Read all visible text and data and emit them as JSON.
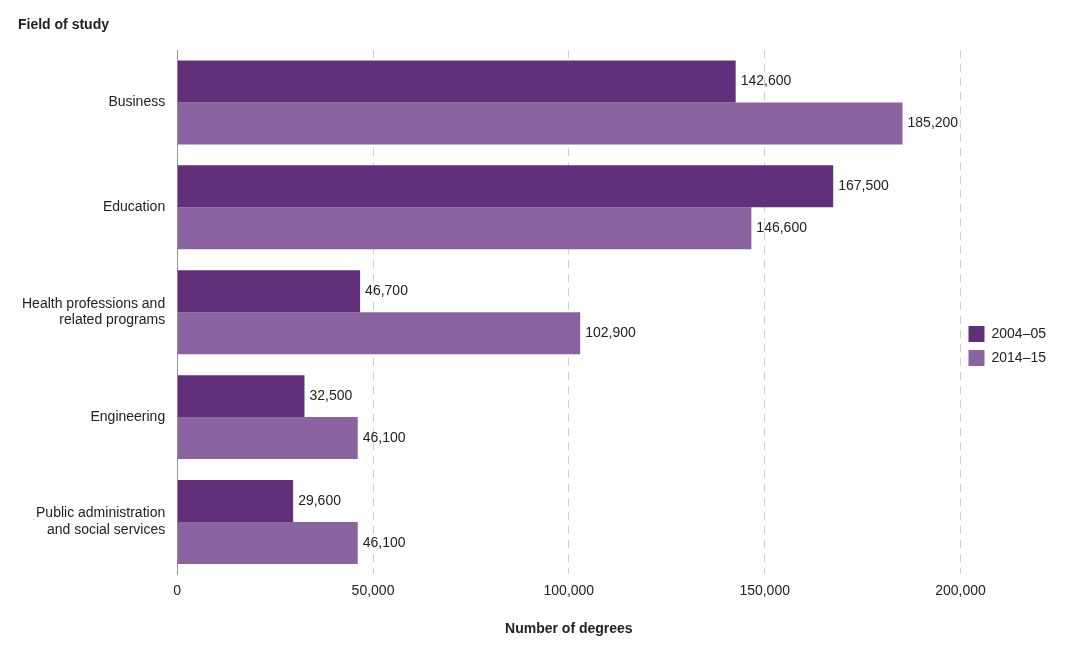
{
  "chart_data": {
    "type": "bar",
    "orientation": "horizontal",
    "xlabel": "Number of degrees",
    "ylabel": "Field of study",
    "categories": [
      "Business",
      "Education",
      "Health professions and related programs",
      "Engineering",
      "Public administration and social services"
    ],
    "series": [
      {
        "name": "2004–05",
        "color": "#62307a",
        "values": [
          142600,
          167500,
          46700,
          32500,
          29600
        ],
        "value_labels": [
          "142,600",
          "167,500",
          "46,700",
          "32,500",
          "29,600"
        ]
      },
      {
        "name": "2014–15",
        "color": "#8a64a0",
        "values": [
          185200,
          146600,
          102900,
          46100,
          46100
        ],
        "value_labels": [
          "185,200",
          "146,600",
          "102,900",
          "46,100",
          "46,100"
        ]
      }
    ],
    "xlim": [
      0,
      200000
    ],
    "xticks": [
      0,
      {
        "value": 50000,
        "label": "50,000"
      },
      {
        "value": 100000,
        "label": "100,000"
      },
      {
        "value": 150000,
        "label": "150,000"
      },
      {
        "value": 200000,
        "label": "200,000"
      }
    ],
    "grid": "x",
    "legend": "right"
  }
}
